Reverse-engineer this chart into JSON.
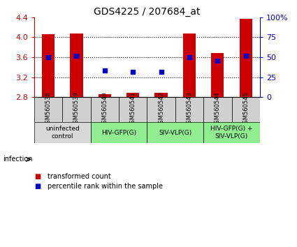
{
  "title": "GDS4225 / 207684_at",
  "samples": [
    "GSM560538",
    "GSM560539",
    "GSM560540",
    "GSM560541",
    "GSM560542",
    "GSM560543",
    "GSM560544",
    "GSM560545"
  ],
  "transformed_counts": [
    4.06,
    4.07,
    2.86,
    2.88,
    2.88,
    4.08,
    3.68,
    4.37
  ],
  "percentile_ranks": [
    50,
    52,
    33,
    32,
    32,
    50,
    46,
    52
  ],
  "ylim": [
    2.8,
    4.4
  ],
  "yticks": [
    2.8,
    3.2,
    3.6,
    4.0,
    4.4
  ],
  "right_yticks": [
    0,
    25,
    50,
    75,
    100
  ],
  "right_ylabels": [
    "0",
    "25",
    "50",
    "75",
    "100%"
  ],
  "bar_color": "#cc0000",
  "dot_color": "#0000cc",
  "bar_width": 0.45,
  "groups": [
    {
      "label": "uninfected\ncontrol",
      "span": [
        0,
        2
      ],
      "color": "#d8d8d8"
    },
    {
      "label": "HIV-GFP(G)",
      "span": [
        2,
        4
      ],
      "color": "#90ee90"
    },
    {
      "label": "SIV-VLP(G)",
      "span": [
        4,
        6
      ],
      "color": "#90ee90"
    },
    {
      "label": "HIV-GFP(G) +\nSIV-VLP(G)",
      "span": [
        6,
        8
      ],
      "color": "#90ee90"
    }
  ],
  "tick_label_color_left": "#cc0000",
  "tick_label_color_right": "#0000cc",
  "legend_items": [
    {
      "color": "#cc0000",
      "label": "transformed count"
    },
    {
      "color": "#0000cc",
      "label": "percentile rank within the sample"
    }
  ],
  "infection_label": "infection",
  "sample_bg_color": "#d0d0d0",
  "grid_yticks": [
    3.2,
    3.6,
    4.0
  ]
}
